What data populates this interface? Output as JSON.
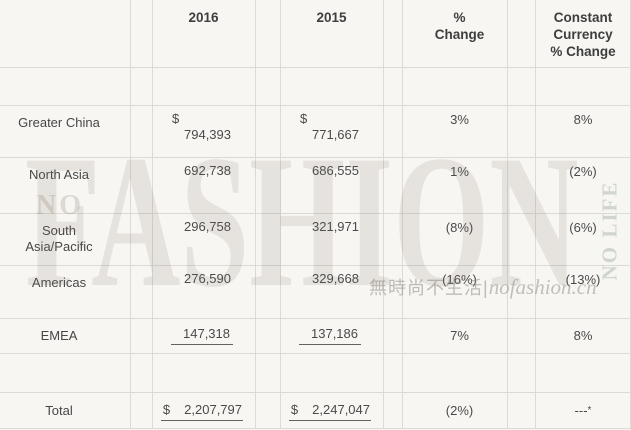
{
  "header": {
    "y2016": "2016",
    "y2015": "2015",
    "pct": "%\nChange",
    "cc": "Constant\nCurrency\n% Change"
  },
  "rows": [
    {
      "label": "Greater China",
      "currency": "$",
      "v2016": "794,393",
      "v2015": "771,667",
      "pct": "3%",
      "cc": "8%",
      "style": "two-line"
    },
    {
      "label": "North Asia",
      "currency": "",
      "v2016": "692,738",
      "v2015": "686,555",
      "pct": "1%",
      "cc": "(2%)",
      "style": "two-line"
    },
    {
      "label": "South Asia/Pacific",
      "currency": "",
      "v2016": "296,758",
      "v2015": "321,971",
      "pct": "(8%)",
      "cc": "(6%)",
      "style": "two-line"
    },
    {
      "label": "Americas",
      "currency": "",
      "v2016": "276,590",
      "v2015": "329,668",
      "pct": "(16%)",
      "cc": "(13%)",
      "style": "two-line"
    },
    {
      "label": "EMEA",
      "currency": "",
      "v2016": "147,318",
      "v2015": "137,186",
      "pct": "7%",
      "cc": "8%",
      "style": "underline"
    },
    {
      "label": "Total",
      "currency": "$",
      "v2016": "2,207,797",
      "v2015": "2,247,047",
      "pct": "(2%)",
      "cc": "---",
      "cc_sup": "*",
      "style": "total"
    }
  ],
  "watermark": {
    "no": "NO",
    "brand": "FASHION",
    "no_life": "NO LIFE",
    "cjk": "無時尚不生活",
    "sep": "|",
    "site": "nofashion.cn"
  },
  "colors": {
    "background": "#f7f6f3",
    "grid_line": "#dbdad6",
    "header_text": "#3e3e3e",
    "body_text": "#4a4a4a",
    "underline": "#626262",
    "watermark_gray": "#e3e0da"
  }
}
